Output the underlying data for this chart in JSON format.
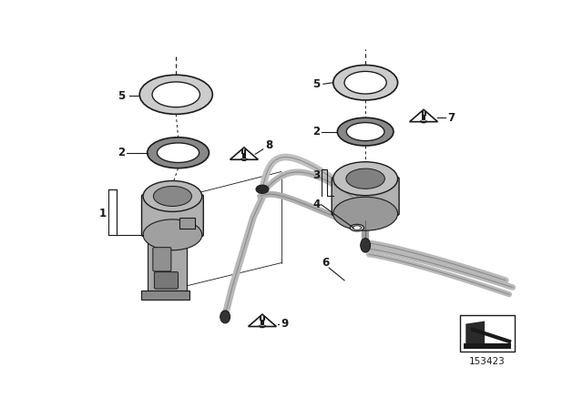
{
  "bg_color": "#ffffff",
  "fig_width": 6.4,
  "fig_height": 4.48,
  "dpi": 100,
  "line_color": "#1a1a1a",
  "label_fontsize": 8.5,
  "diagram_number": "153423",
  "tube_color": "#b0b0b0",
  "part_color_light": "#c8c8c8",
  "part_color_mid": "#a0a0a0",
  "part_color_dark": "#707070",
  "ring_outer_color": "#c0c0c0",
  "ring_inner_color": "#ffffff"
}
